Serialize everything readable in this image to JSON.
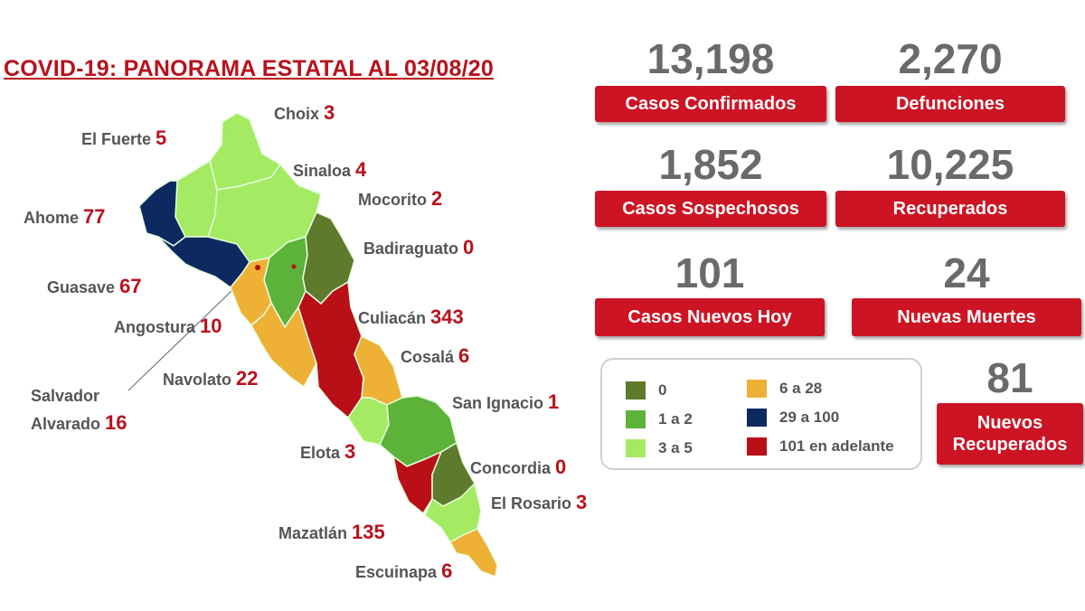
{
  "title": "COVID-19: PANORAMA ESTATAL AL 03/08/20",
  "colors": {
    "brand_red": "#cc1424",
    "scale_0": "#5e7a2c",
    "scale_1_2": "#5db23a",
    "scale_3_5": "#a4ea62",
    "scale_6_28": "#eeb035",
    "scale_29_100": "#0d2a60",
    "scale_101_plus": "#b90f16"
  },
  "stats": {
    "confirmed": {
      "value": "13,198",
      "label": "Casos Confirmados"
    },
    "deaths": {
      "value": "2,270",
      "label": "Defunciones"
    },
    "suspected": {
      "value": "1,852",
      "label": "Casos Sospechosos"
    },
    "recovered": {
      "value": "10,225",
      "label": "Recuperados"
    },
    "new_today": {
      "value": "101",
      "label": "Casos Nuevos Hoy"
    },
    "new_deaths": {
      "value": "24",
      "label": "Nuevas Muertes"
    },
    "new_recovered": {
      "value": "81",
      "label_line1": "Nuevos",
      "label_line2": "Recuperados"
    }
  },
  "legend": [
    {
      "label": "0",
      "color": "#5e7a2c"
    },
    {
      "label": "1 a 2",
      "color": "#5db23a"
    },
    {
      "label": "3 a 5",
      "color": "#a4ea62"
    },
    {
      "label": "6 a 28",
      "color": "#eeb035"
    },
    {
      "label": "29 a 100",
      "color": "#0d2a60"
    },
    {
      "label": "101 en adelante",
      "color": "#b90f16"
    }
  ],
  "municipalities": [
    {
      "name": "Choix",
      "cases": "3",
      "category": "3 a 5"
    },
    {
      "name": "El Fuerte",
      "cases": "5",
      "category": "3 a 5"
    },
    {
      "name": "Sinaloa",
      "cases": "4",
      "category": "3 a 5"
    },
    {
      "name": "Ahome",
      "cases": "77",
      "category": "29 a 100"
    },
    {
      "name": "Mocorito",
      "cases": "2",
      "category": "1 a 2"
    },
    {
      "name": "Badiraguato",
      "cases": "0",
      "category": "0"
    },
    {
      "name": "Guasave",
      "cases": "67",
      "category": "29 a 100"
    },
    {
      "name": "Angostura",
      "cases": "10",
      "category": "6 a 28"
    },
    {
      "name": "Culiacán",
      "cases": "343",
      "category": "101 en adelante"
    },
    {
      "name": "Cosalá",
      "cases": "6",
      "category": "6 a 28"
    },
    {
      "name": "Navolato",
      "cases": "22",
      "category": "6 a 28"
    },
    {
      "name": "Salvador",
      "name_line2": "Alvarado",
      "cases": "16",
      "category": "6 a 28"
    },
    {
      "name": "San Ignacio",
      "cases": "1",
      "category": "1 a 2"
    },
    {
      "name": "Elota",
      "cases": "3",
      "category": "3 a 5"
    },
    {
      "name": "Concordia",
      "cases": "0",
      "category": "0"
    },
    {
      "name": "El Rosario",
      "cases": "3",
      "category": "3 a 5"
    },
    {
      "name": "Mazatlán",
      "cases": "135",
      "category": "101 en adelante"
    },
    {
      "name": "Escuinapa",
      "cases": "6",
      "category": "6 a 28"
    }
  ]
}
